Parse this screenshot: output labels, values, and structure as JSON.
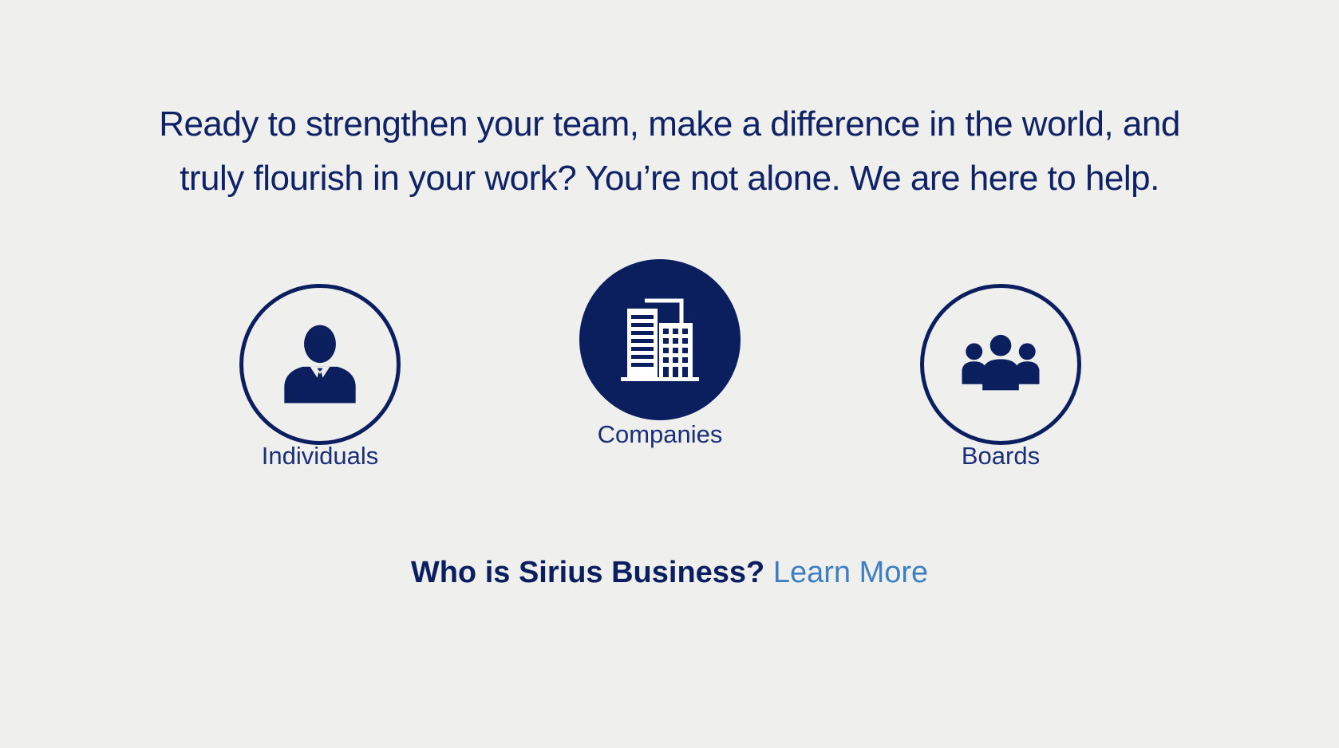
{
  "headline": {
    "line1": "Ready to strengthen your team, make a difference in the world, and",
    "line2": "truly flourish in your work? You’re not alone. We are here to help."
  },
  "audiences": [
    {
      "label": "Individuals",
      "icon": "person-with-tie-icon",
      "style": "outline"
    },
    {
      "label": "Companies",
      "icon": "office-building-icon",
      "style": "filled"
    },
    {
      "label": "Boards",
      "icon": "group-of-people-icon",
      "style": "outline"
    }
  ],
  "cta": {
    "lead": "Who is Sirius Business?",
    "link": "Learn More"
  },
  "colors": {
    "background": "#efefee",
    "navy": "#0b1f5f",
    "link": "#3d7fc0"
  }
}
